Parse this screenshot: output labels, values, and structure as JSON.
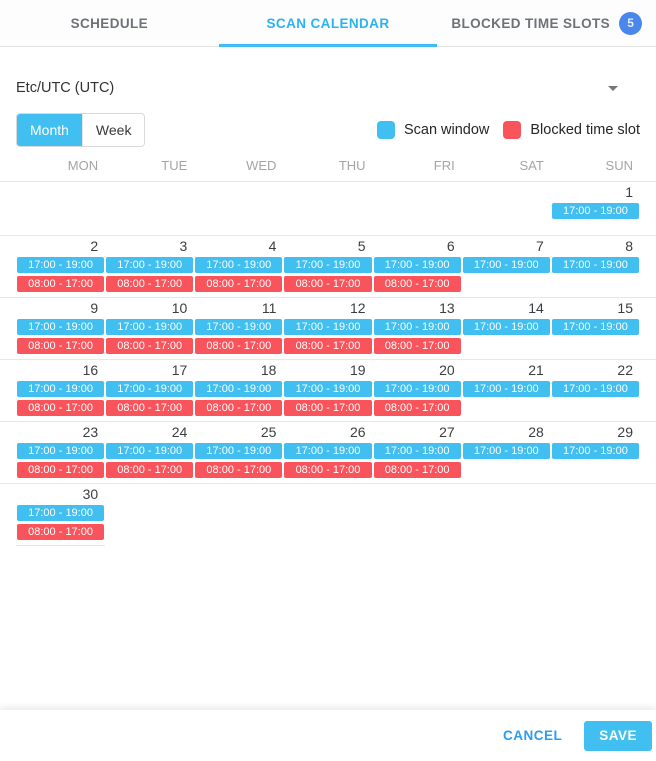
{
  "tabs": [
    {
      "label": "SCHEDULE",
      "active": false
    },
    {
      "label": "SCAN CALENDAR",
      "active": true
    },
    {
      "label": "BLOCKED TIME SLOTS",
      "active": false,
      "badge": "5"
    }
  ],
  "timezone": {
    "selected": "Etc/UTC (UTC)"
  },
  "view_toggle": {
    "month_label": "Month",
    "week_label": "Week",
    "selected": "Month"
  },
  "legend": [
    {
      "key": "scan",
      "label": "Scan window",
      "color": "#41bff0"
    },
    {
      "key": "blocked",
      "label": "Blocked time slot",
      "color": "#f9545b"
    }
  ],
  "calendar": {
    "weekdays": [
      "MON",
      "TUE",
      "WED",
      "THU",
      "FRI",
      "SAT",
      "SUN"
    ],
    "event_types": {
      "scan": {
        "label": "17:00 - 19:00",
        "color": "#41bff0"
      },
      "blocked": {
        "label": "08:00 - 17:00",
        "color": "#f9545b"
      }
    },
    "weeks": [
      [
        null,
        null,
        null,
        null,
        null,
        null,
        {
          "day": 1,
          "events": [
            "scan"
          ]
        }
      ],
      [
        {
          "day": 2,
          "events": [
            "scan",
            "blocked"
          ]
        },
        {
          "day": 3,
          "events": [
            "scan",
            "blocked"
          ]
        },
        {
          "day": 4,
          "events": [
            "scan",
            "blocked"
          ]
        },
        {
          "day": 5,
          "events": [
            "scan",
            "blocked"
          ]
        },
        {
          "day": 6,
          "events": [
            "scan",
            "blocked"
          ]
        },
        {
          "day": 7,
          "events": [
            "scan"
          ]
        },
        {
          "day": 8,
          "events": [
            "scan"
          ]
        }
      ],
      [
        {
          "day": 9,
          "events": [
            "scan",
            "blocked"
          ]
        },
        {
          "day": 10,
          "events": [
            "scan",
            "blocked"
          ]
        },
        {
          "day": 11,
          "events": [
            "scan",
            "blocked"
          ]
        },
        {
          "day": 12,
          "events": [
            "scan",
            "blocked"
          ]
        },
        {
          "day": 13,
          "events": [
            "scan",
            "blocked"
          ]
        },
        {
          "day": 14,
          "events": [
            "scan"
          ]
        },
        {
          "day": 15,
          "events": [
            "scan"
          ]
        }
      ],
      [
        {
          "day": 16,
          "events": [
            "scan",
            "blocked"
          ]
        },
        {
          "day": 17,
          "events": [
            "scan",
            "blocked"
          ]
        },
        {
          "day": 18,
          "events": [
            "scan",
            "blocked"
          ]
        },
        {
          "day": 19,
          "events": [
            "scan",
            "blocked"
          ]
        },
        {
          "day": 20,
          "events": [
            "scan",
            "blocked"
          ]
        },
        {
          "day": 21,
          "events": [
            "scan"
          ]
        },
        {
          "day": 22,
          "events": [
            "scan"
          ]
        }
      ],
      [
        {
          "day": 23,
          "events": [
            "scan",
            "blocked"
          ]
        },
        {
          "day": 24,
          "events": [
            "scan",
            "blocked"
          ]
        },
        {
          "day": 25,
          "events": [
            "scan",
            "blocked"
          ]
        },
        {
          "day": 26,
          "events": [
            "scan",
            "blocked"
          ]
        },
        {
          "day": 27,
          "events": [
            "scan",
            "blocked"
          ]
        },
        {
          "day": 28,
          "events": [
            "scan"
          ]
        },
        {
          "day": 29,
          "events": [
            "scan"
          ]
        }
      ],
      [
        {
          "day": 30,
          "events": [
            "scan",
            "blocked"
          ]
        },
        null,
        null,
        null,
        null,
        null,
        null
      ]
    ]
  },
  "footer": {
    "cancel_label": "CANCEL",
    "save_label": "SAVE"
  },
  "colors": {
    "accent_cyan": "#41bff0",
    "accent_red": "#f9545b",
    "tab_active": "#2bb2f1",
    "badge_blue": "#4a87ec",
    "link_blue": "#2b9cf2"
  }
}
